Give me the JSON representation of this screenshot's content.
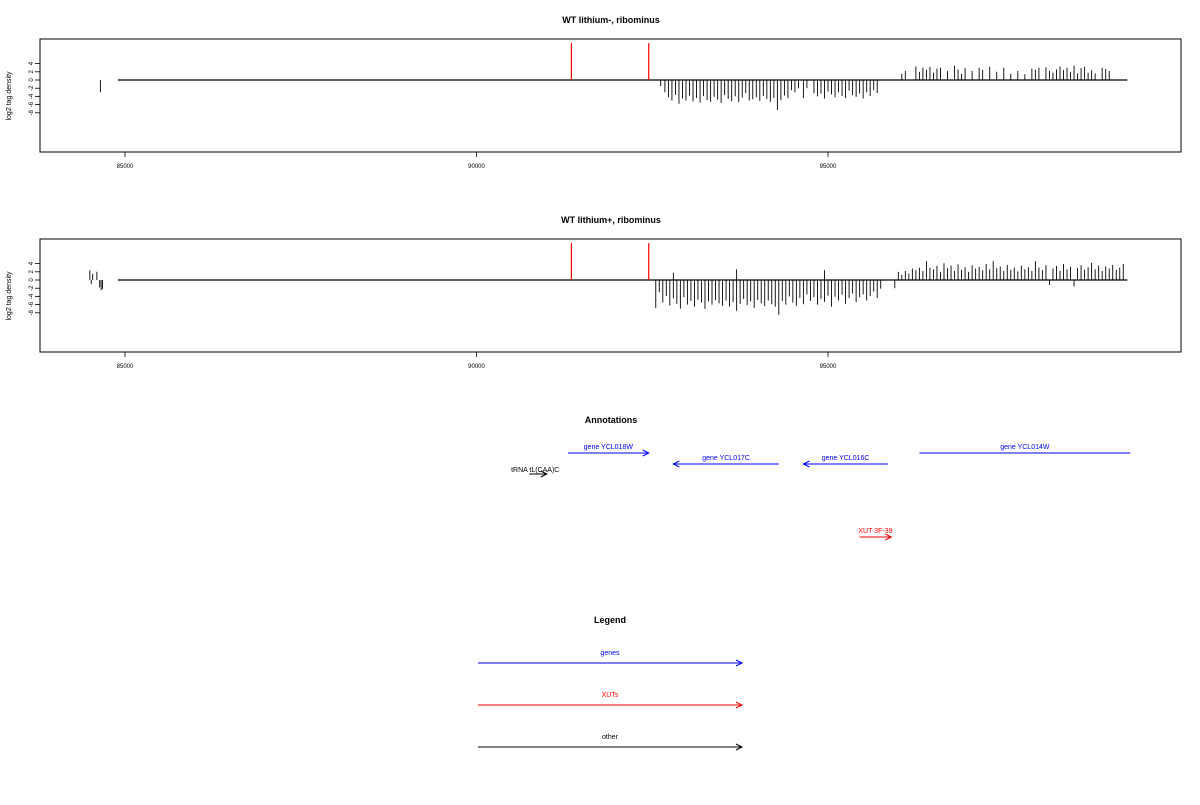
{
  "chart_data": [
    {
      "type": "bar",
      "title": "WT lithium-, ribominus",
      "ylabel": "log2 tag density",
      "xlabel": "",
      "xlim": [
        84300,
        99300
      ],
      "ylim": [
        -9,
        5
      ],
      "x_ticks": [
        85000,
        90000,
        95000
      ],
      "y_ticks": [
        4,
        2,
        0,
        -2,
        -4,
        -6,
        -8
      ],
      "grid": false,
      "markers": [
        91350,
        92450
      ],
      "marker_color": "#ff0000",
      "baseline": {
        "x_start": 84300,
        "x_end": 99300,
        "y": 0
      },
      "bars": [
        [
          84650,
          -3.0
        ],
        [
          92620,
          -1.5
        ],
        [
          92680,
          -3.0
        ],
        [
          92730,
          -4.2
        ],
        [
          92780,
          -5.0
        ],
        [
          92830,
          -3.6
        ],
        [
          92880,
          -5.8
        ],
        [
          92930,
          -4.5
        ],
        [
          92980,
          -5.0
        ],
        [
          93030,
          -3.8
        ],
        [
          93080,
          -5.2
        ],
        [
          93130,
          -4.4
        ],
        [
          93180,
          -5.5
        ],
        [
          93230,
          -3.9
        ],
        [
          93280,
          -4.9
        ],
        [
          93330,
          -5.3
        ],
        [
          93380,
          -4.1
        ],
        [
          93430,
          -4.8
        ],
        [
          93480,
          -5.6
        ],
        [
          93530,
          -3.7
        ],
        [
          93580,
          -4.6
        ],
        [
          93630,
          -5.2
        ],
        [
          93680,
          -4.0
        ],
        [
          93730,
          -5.4
        ],
        [
          93780,
          -4.3
        ],
        [
          93830,
          -3.2
        ],
        [
          93880,
          -5.0
        ],
        [
          93930,
          -4.7
        ],
        [
          93980,
          -4.2
        ],
        [
          94030,
          -5.1
        ],
        [
          94080,
          -3.9
        ],
        [
          94130,
          -4.6
        ],
        [
          94180,
          -5.3
        ],
        [
          94230,
          -4.4
        ],
        [
          94280,
          -7.3
        ],
        [
          94330,
          -4.9
        ],
        [
          94380,
          -3.8
        ],
        [
          94430,
          -4.4
        ],
        [
          94480,
          -2.5
        ],
        [
          94530,
          -3.0
        ],
        [
          94580,
          -2.0
        ],
        [
          94650,
          -4.4
        ],
        [
          94700,
          -2.0
        ],
        [
          94800,
          -3.2
        ],
        [
          94850,
          -4.0
        ],
        [
          94900,
          -3.3
        ],
        [
          94950,
          -4.5
        ],
        [
          95000,
          -2.8
        ],
        [
          95050,
          -3.5
        ],
        [
          95100,
          -4.2
        ],
        [
          95150,
          -3.0
        ],
        [
          95200,
          -3.9
        ],
        [
          95250,
          -4.4
        ],
        [
          95300,
          -2.6
        ],
        [
          95350,
          -3.7
        ],
        [
          95400,
          -4.1
        ],
        [
          95450,
          -3.3
        ],
        [
          95500,
          -4.5
        ],
        [
          95550,
          -3.0
        ],
        [
          95600,
          -3.9
        ],
        [
          95650,
          -2.5
        ],
        [
          95700,
          -3.2
        ],
        [
          96050,
          1.5
        ],
        [
          96100,
          2.2
        ],
        [
          96250,
          3.3
        ],
        [
          96300,
          2.0
        ],
        [
          96350,
          3.0
        ],
        [
          96400,
          2.5
        ],
        [
          96450,
          3.2
        ],
        [
          96500,
          1.8
        ],
        [
          96550,
          2.8
        ],
        [
          96600,
          3.0
        ],
        [
          96700,
          2.2
        ],
        [
          96800,
          3.5
        ],
        [
          96850,
          2.6
        ],
        [
          96900,
          1.5
        ],
        [
          96950,
          2.9
        ],
        [
          97050,
          2.2
        ],
        [
          97150,
          3.0
        ],
        [
          97200,
          2.5
        ],
        [
          97300,
          3.2
        ],
        [
          97400,
          2.0
        ],
        [
          97500,
          3.0
        ],
        [
          97600,
          1.5
        ],
        [
          97700,
          2.2
        ],
        [
          97800,
          1.4
        ],
        [
          97900,
          2.8
        ],
        [
          97950,
          2.5
        ],
        [
          98000,
          3.0
        ],
        [
          98100,
          3.1
        ],
        [
          98150,
          2.2
        ],
        [
          98200,
          1.8
        ],
        [
          98250,
          2.6
        ],
        [
          98300,
          3.3
        ],
        [
          98350,
          2.4
        ],
        [
          98400,
          3.0
        ],
        [
          98450,
          2.0
        ],
        [
          98500,
          3.5
        ],
        [
          98550,
          1.6
        ],
        [
          98600,
          2.9
        ],
        [
          98650,
          3.2
        ],
        [
          98700,
          1.8
        ],
        [
          98750,
          2.4
        ],
        [
          98800,
          1.6
        ],
        [
          98900,
          3.0
        ],
        [
          98950,
          2.7
        ],
        [
          99000,
          2.2
        ]
      ]
    },
    {
      "type": "bar",
      "title": "WT lithium+, ribominus",
      "ylabel": "log2 tag density",
      "xlabel": "",
      "xlim": [
        84300,
        99300
      ],
      "ylim": [
        -9,
        5
      ],
      "x_ticks": [
        85000,
        90000,
        95000
      ],
      "y_ticks": [
        4,
        2,
        0,
        -2,
        -4,
        -6,
        -8
      ],
      "grid": false,
      "markers": [
        91350,
        92450
      ],
      "marker_color": "#ff0000",
      "baseline": {
        "x_start": 84300,
        "x_end": 99300,
        "y": 0
      },
      "bars": [
        [
          84500,
          2.4
        ],
        [
          84520,
          -1.0
        ],
        [
          84540,
          1.5
        ],
        [
          84600,
          2.0
        ],
        [
          84640,
          -1.8
        ],
        [
          84660,
          -2.5
        ],
        [
          84680,
          -2.2
        ],
        [
          92550,
          -6.8
        ],
        [
          92600,
          -3.0
        ],
        [
          92650,
          -5.5
        ],
        [
          92700,
          -3.9
        ],
        [
          92750,
          -6.2
        ],
        [
          92800,
          -4.5
        ],
        [
          92850,
          -5.8
        ],
        [
          92900,
          -7.0
        ],
        [
          92950,
          -4.2
        ],
        [
          93000,
          -6.0
        ],
        [
          93050,
          -5.1
        ],
        [
          93100,
          -6.5
        ],
        [
          93150,
          -4.8
        ],
        [
          93200,
          -5.5
        ],
        [
          93250,
          -7.0
        ],
        [
          93300,
          -5.2
        ],
        [
          93350,
          -6.0
        ],
        [
          93400,
          -4.9
        ],
        [
          93450,
          -5.7
        ],
        [
          93500,
          -6.3
        ],
        [
          93550,
          -5.0
        ],
        [
          93600,
          -6.5
        ],
        [
          93650,
          -5.4
        ],
        [
          93700,
          -7.5
        ],
        [
          93750,
          -5.8
        ],
        [
          93800,
          -4.6
        ],
        [
          93850,
          -6.1
        ],
        [
          93900,
          -5.2
        ],
        [
          93950,
          -6.8
        ],
        [
          94000,
          -4.9
        ],
        [
          94050,
          -5.7
        ],
        [
          94100,
          -6.4
        ],
        [
          94150,
          -5.0
        ],
        [
          94200,
          -5.9
        ],
        [
          94250,
          -6.5
        ],
        [
          94300,
          -8.5
        ],
        [
          94350,
          -5.1
        ],
        [
          94400,
          -6.0
        ],
        [
          94450,
          -4.0
        ],
        [
          94500,
          -5.5
        ],
        [
          94550,
          -6.3
        ],
        [
          94600,
          -4.4
        ],
        [
          94650,
          -5.9
        ],
        [
          94700,
          -3.5
        ],
        [
          94750,
          -5.1
        ],
        [
          94800,
          -4.2
        ],
        [
          94850,
          -6.0
        ],
        [
          94900,
          -4.6
        ],
        [
          94950,
          -5.3
        ],
        [
          95000,
          -3.8
        ],
        [
          95050,
          -6.5
        ],
        [
          95100,
          -4.1
        ],
        [
          95150,
          -5.0
        ],
        [
          95200,
          -3.6
        ],
        [
          95250,
          -5.8
        ],
        [
          95300,
          -4.4
        ],
        [
          95350,
          -3.3
        ],
        [
          95400,
          -5.4
        ],
        [
          95450,
          -4.2
        ],
        [
          95500,
          -3.5
        ],
        [
          95550,
          -5.0
        ],
        [
          95600,
          -3.9
        ],
        [
          95650,
          -2.8
        ],
        [
          95700,
          -4.4
        ],
        [
          95750,
          -2.1
        ],
        [
          92800,
          1.8
        ],
        [
          93700,
          2.6
        ],
        [
          94950,
          2.4
        ],
        [
          95950,
          -2.0
        ],
        [
          96000,
          2.0
        ],
        [
          96050,
          1.3
        ],
        [
          96100,
          2.2
        ],
        [
          96150,
          1.6
        ],
        [
          96200,
          2.8
        ],
        [
          96250,
          2.4
        ],
        [
          96300,
          3.0
        ],
        [
          96350,
          2.2
        ],
        [
          96400,
          4.6
        ],
        [
          96450,
          3.0
        ],
        [
          96500,
          2.6
        ],
        [
          96550,
          3.4
        ],
        [
          96600,
          2.0
        ],
        [
          96650,
          4.1
        ],
        [
          96700,
          2.9
        ],
        [
          96750,
          3.5
        ],
        [
          96800,
          2.2
        ],
        [
          96850,
          3.8
        ],
        [
          96900,
          2.5
        ],
        [
          96950,
          3.1
        ],
        [
          97000,
          2.0
        ],
        [
          97050,
          3.6
        ],
        [
          97100,
          2.8
        ],
        [
          97150,
          3.2
        ],
        [
          97200,
          2.4
        ],
        [
          97250,
          3.9
        ],
        [
          97300,
          2.6
        ],
        [
          97350,
          4.6
        ],
        [
          97400,
          2.9
        ],
        [
          97450,
          3.3
        ],
        [
          97500,
          2.2
        ],
        [
          97550,
          3.7
        ],
        [
          97600,
          2.5
        ],
        [
          97650,
          3.0
        ],
        [
          97700,
          2.1
        ],
        [
          97750,
          3.5
        ],
        [
          97800,
          2.6
        ],
        [
          97850,
          3.1
        ],
        [
          97900,
          2.2
        ],
        [
          97950,
          4.6
        ],
        [
          98000,
          3.0
        ],
        [
          98050,
          2.4
        ],
        [
          98100,
          3.6
        ],
        [
          98150,
          -1.2
        ],
        [
          98200,
          2.8
        ],
        [
          98250,
          3.4
        ],
        [
          98300,
          2.3
        ],
        [
          98350,
          3.9
        ],
        [
          98400,
          2.6
        ],
        [
          98450,
          3.2
        ],
        [
          98500,
          -1.6
        ],
        [
          98550,
          2.9
        ],
        [
          98600,
          3.6
        ],
        [
          98650,
          2.5
        ],
        [
          98700,
          3.1
        ],
        [
          98750,
          4.2
        ],
        [
          98800,
          2.6
        ],
        [
          98850,
          3.5
        ],
        [
          98900,
          2.2
        ],
        [
          98950,
          3.3
        ],
        [
          99000,
          2.8
        ],
        [
          99050,
          3.7
        ],
        [
          99100,
          2.5
        ],
        [
          99150,
          3.0
        ],
        [
          99200,
          3.9
        ]
      ]
    }
  ],
  "annotations": {
    "title": "Annotations",
    "items": [
      {
        "label": "gene YCL018W",
        "color": "#0000ff",
        "x_start": 91300,
        "x_end": 92450,
        "dir": "right",
        "row": 1
      },
      {
        "label": "gene YCL017C",
        "color": "#0000ff",
        "x_start": 92800,
        "x_end": 94300,
        "dir": "left",
        "row": 2
      },
      {
        "label": "gene YCL016C",
        "color": "#0000ff",
        "x_start": 94650,
        "x_end": 95850,
        "dir": "left",
        "row": 2
      },
      {
        "label": "gene YCL014W",
        "color": "#0000ff",
        "x_start": 96300,
        "x_end": 99300,
        "dir": "none",
        "row": 1
      },
      {
        "label": "tRNA tL(CAA)C",
        "color": "#000000",
        "x_start": 90750,
        "x_end": 91000,
        "dir": "right",
        "row": 3
      },
      {
        "label": "XUT 3F-39",
        "color": "#ff0000",
        "x_start": 95450,
        "x_end": 95900,
        "dir": "right",
        "row": 4
      }
    ]
  },
  "legend": {
    "title": "Legend",
    "items": [
      {
        "label": "genes",
        "color": "#0000ff"
      },
      {
        "label": "XUTs",
        "color": "#ff0000"
      },
      {
        "label": "other",
        "color": "#000000"
      }
    ]
  }
}
